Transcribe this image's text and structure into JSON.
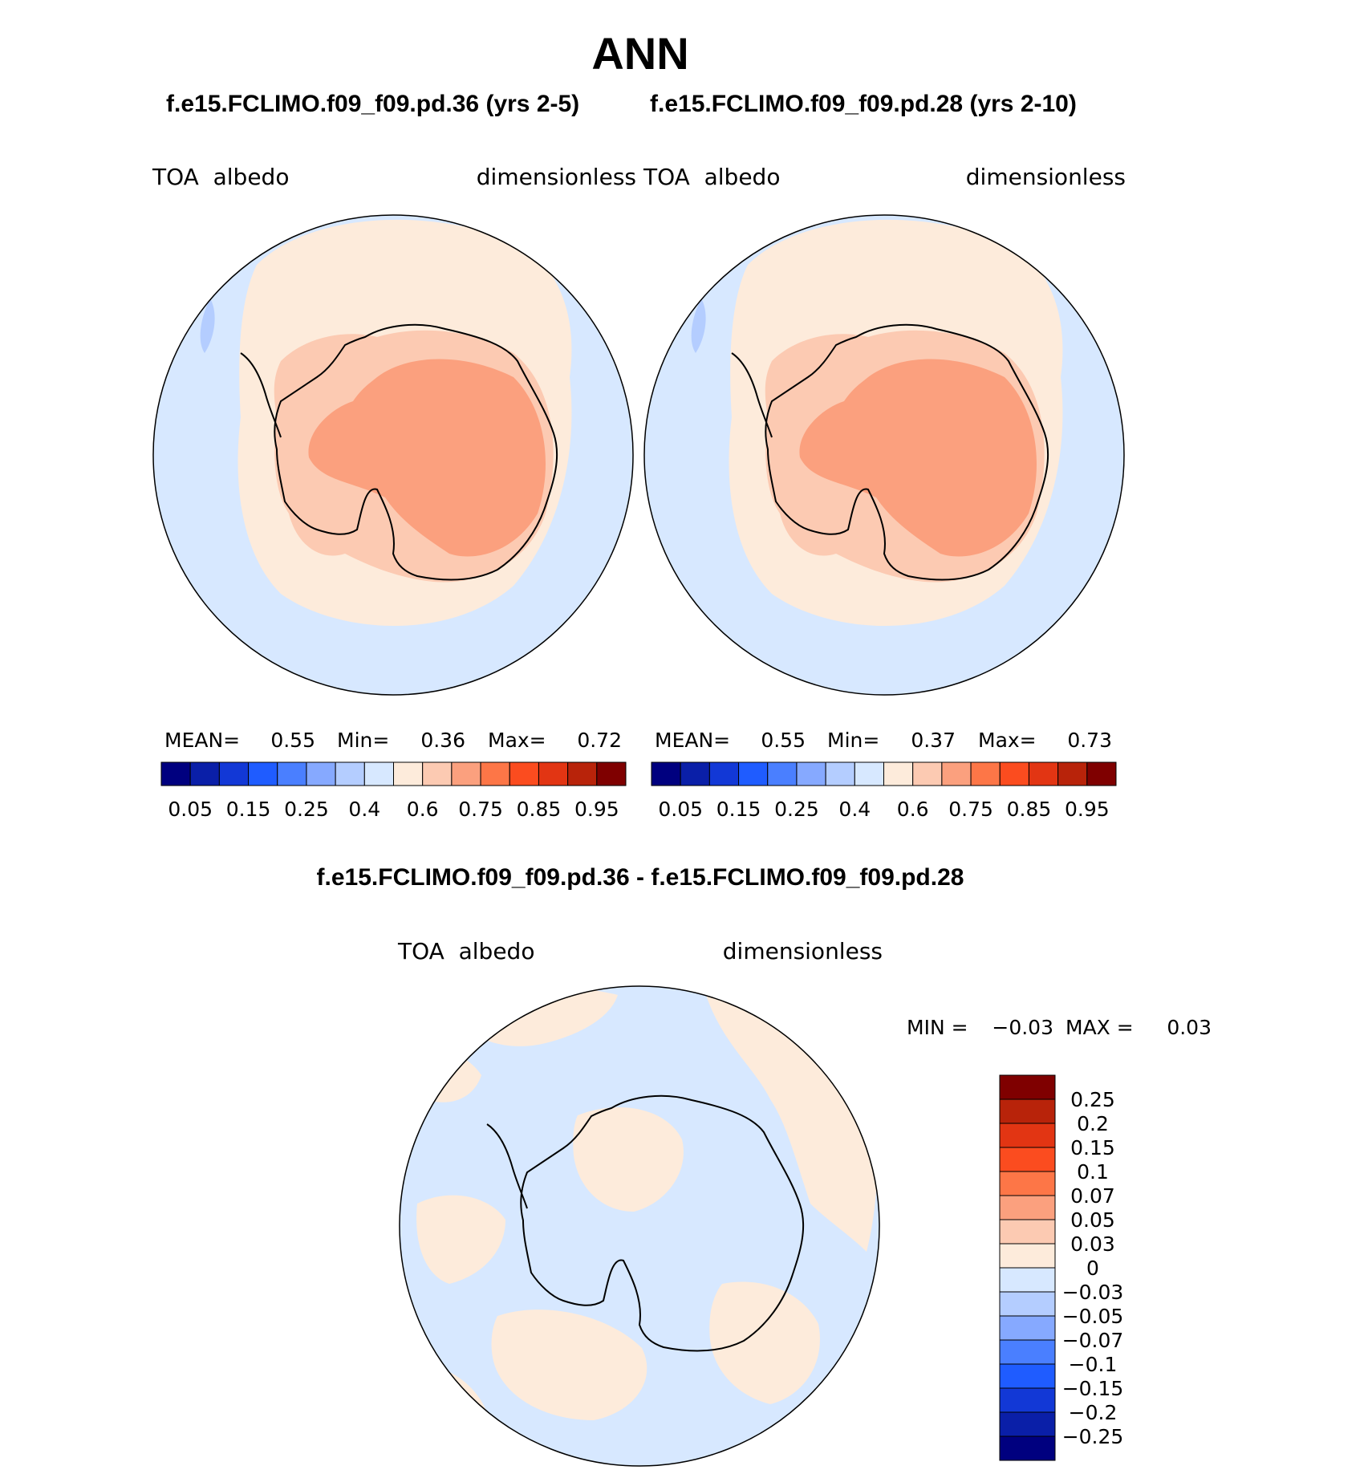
{
  "main_title": "ANN",
  "subtitle_left": "f.e15.FCLIMO.f09_f09.pd.36 (yrs 2-5)",
  "subtitle_right": "f.e15.FCLIMO.f09_f09.pd.28 (yrs 2-10)",
  "diff_title": "f.e15.FCLIMO.f09_f09.pd.36 - f.e15.FCLIMO.f09_f09.pd.28",
  "panels": [
    {
      "variable": "TOA  albedo",
      "units": "dimensionless",
      "stats": {
        "mean_label": "MEAN=",
        "mean": "0.55",
        "min_label": "Min=",
        "min": "0.36",
        "max_label": "Max=",
        "max": "0.72"
      }
    },
    {
      "variable": "TOA  albedo",
      "units": "dimensionless",
      "stats": {
        "mean_label": "MEAN=",
        "mean": "0.55",
        "min_label": "Min=",
        "min": "0.37",
        "max_label": "Max=",
        "max": "0.73"
      }
    }
  ],
  "diff_panel": {
    "variable": "TOA  albedo",
    "units": "dimensionless",
    "stats": {
      "min_label": "MIN =",
      "min": "−0.03",
      "max_label": "MAX =",
      "max": "0.03"
    }
  },
  "colorbar_main": {
    "colors": [
      "#00007f",
      "#0a1fa8",
      "#1238d6",
      "#1f5cff",
      "#4a7fff",
      "#86a9ff",
      "#b4cdff",
      "#d7e8ff",
      "#fdebdb",
      "#fccab2",
      "#fba07e",
      "#fd7647",
      "#fb4c1f",
      "#e23513",
      "#b8230a",
      "#7f0000"
    ],
    "labels": [
      "0.05",
      "0.15",
      "0.25",
      "0.4",
      "0.6",
      "0.75",
      "0.85",
      "0.95"
    ]
  },
  "colorbar_diff": {
    "colors_top_to_bottom": [
      "#7f0000",
      "#b8230a",
      "#e23513",
      "#fb4c1f",
      "#fd7647",
      "#fba07e",
      "#fccab2",
      "#fdebdb",
      "#d7e8ff",
      "#b4cdff",
      "#86a9ff",
      "#4a7fff",
      "#1f5cff",
      "#1238d6",
      "#0a1fa8",
      "#00007f"
    ],
    "labels": [
      "0.25",
      "0.2",
      "0.15",
      "0.1",
      "0.07",
      "0.05",
      "0.03",
      "0",
      "−0.03",
      "−0.05",
      "−0.07",
      "−0.1",
      "−0.15",
      "−0.2",
      "−0.25"
    ]
  }
}
